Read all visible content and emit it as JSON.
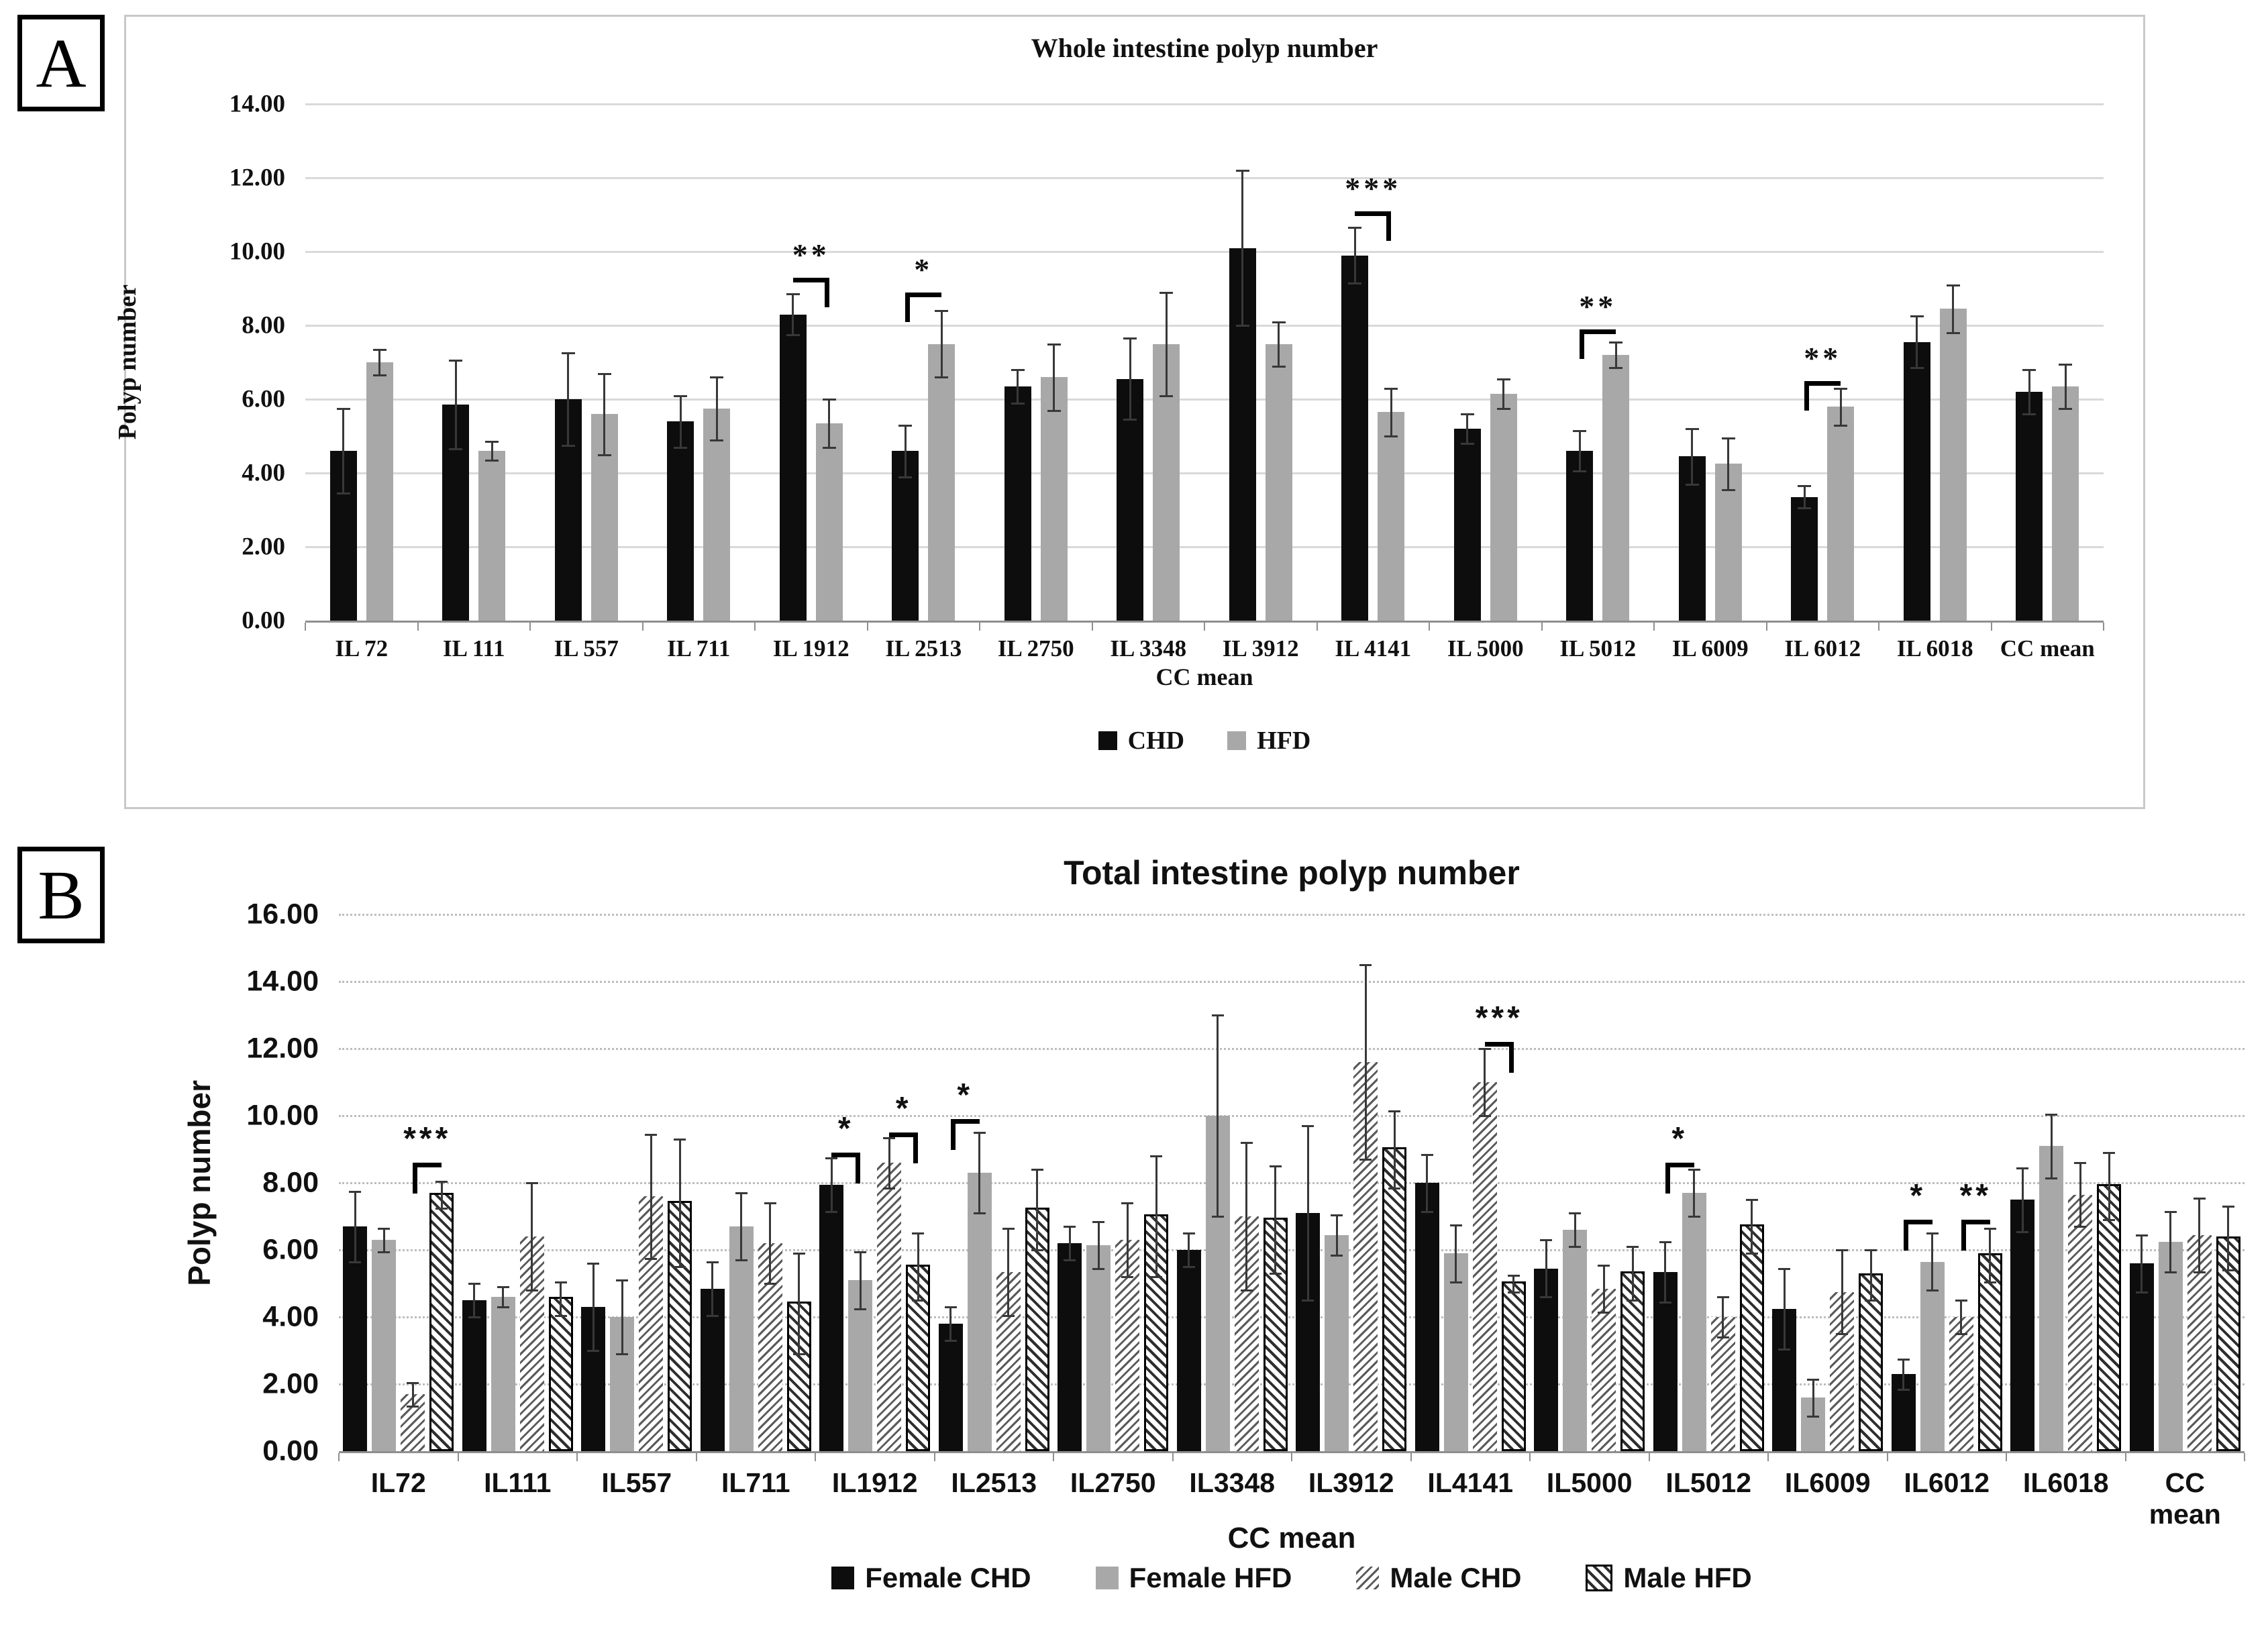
{
  "panels": {
    "a": "A",
    "b": "B"
  },
  "colors": {
    "bar_black": "#0d0d0d",
    "bar_gray": "#a8a8a8",
    "hatch_stroke": "#5a5a5a",
    "gridline": "#d9d9d9",
    "axis": "#8f8f8f",
    "panel_border": "#c8c8c8"
  },
  "chart_data": [
    {
      "id": "whole-intestine",
      "type": "bar",
      "title": "Whole intestine polyp number",
      "xlabel": "CC mean",
      "ylabel": "Polyp number",
      "ylim": [
        0,
        14
      ],
      "ytick_step": 2,
      "ytick_labels": [
        "0.00",
        "2.00",
        "4.00",
        "6.00",
        "8.00",
        "10.00",
        "12.00",
        "14.00"
      ],
      "grid": "solid",
      "legend_position": "bottom-center",
      "categories": [
        "IL 72",
        "IL 111",
        "IL 557",
        "IL 711",
        "IL 1912",
        "IL 2513",
        "IL 2750",
        "IL 3348",
        "IL 3912",
        "IL 4141",
        "IL 5000",
        "IL 5012",
        "IL 6009",
        "IL 6012",
        "IL 6018",
        "CC mean"
      ],
      "series": [
        {
          "name": "CHD",
          "style": "black",
          "color": "#0d0d0d",
          "values": [
            4.6,
            5.85,
            6.0,
            5.4,
            8.3,
            4.6,
            6.35,
            6.55,
            10.1,
            9.9,
            5.2,
            4.6,
            4.45,
            3.35,
            7.55,
            6.2
          ],
          "errors": [
            1.15,
            1.2,
            1.25,
            0.7,
            0.55,
            0.7,
            0.45,
            1.1,
            2.1,
            0.75,
            0.4,
            0.55,
            0.75,
            0.3,
            0.7,
            0.6
          ]
        },
        {
          "name": "HFD",
          "style": "gray",
          "color": "#a8a8a8",
          "values": [
            7.0,
            4.6,
            5.6,
            5.75,
            5.35,
            7.5,
            6.6,
            7.5,
            7.5,
            5.65,
            6.15,
            7.2,
            4.25,
            5.8,
            8.45,
            6.35
          ],
          "errors": [
            0.35,
            0.25,
            1.1,
            0.85,
            0.65,
            0.9,
            0.9,
            1.4,
            0.6,
            0.65,
            0.4,
            0.35,
            0.7,
            0.5,
            0.65,
            0.6
          ]
        }
      ],
      "significance": [
        {
          "category": "IL 1912",
          "pair": [
            0,
            1
          ],
          "stars": "**",
          "y": 9.3,
          "drop": "right"
        },
        {
          "category": "IL 2513",
          "pair": [
            0,
            1
          ],
          "stars": "*",
          "y": 8.9,
          "drop": "left"
        },
        {
          "category": "IL 4141",
          "pair": [
            0,
            1
          ],
          "stars": "***",
          "y": 11.1,
          "drop": "right"
        },
        {
          "category": "IL 5012",
          "pair": [
            0,
            1
          ],
          "stars": "**",
          "y": 7.9,
          "drop": "left"
        },
        {
          "category": "IL 6012",
          "pair": [
            0,
            1
          ],
          "stars": "**",
          "y": 6.5,
          "drop": "left"
        }
      ]
    },
    {
      "id": "total-intestine",
      "type": "bar",
      "title": "Total intestine polyp number",
      "xlabel": "CC mean",
      "ylabel": "Polyp number",
      "ylim": [
        0,
        16
      ],
      "ytick_step": 2,
      "ytick_labels": [
        "0.00",
        "2.00",
        "4.00",
        "6.00",
        "8.00",
        "10.00",
        "12.00",
        "14.00",
        "16.00"
      ],
      "grid": "dotted",
      "legend_position": "bottom-center",
      "categories": [
        "IL72",
        "IL111",
        "IL557",
        "IL711",
        "IL1912",
        "IL2513",
        "IL2750",
        "IL3348",
        "IL3912",
        "IL4141",
        "IL5000",
        "IL5012",
        "IL6009",
        "IL6012",
        "IL6018",
        "CC mean"
      ],
      "series": [
        {
          "name": "Female CHD",
          "style": "black",
          "color": "#0d0d0d",
          "values": [
            6.7,
            4.5,
            4.3,
            4.85,
            7.95,
            3.8,
            6.2,
            6.0,
            7.1,
            8.0,
            5.45,
            5.35,
            4.25,
            2.3,
            7.5,
            5.6
          ],
          "errors": [
            1.05,
            0.5,
            1.3,
            0.8,
            0.8,
            0.5,
            0.5,
            0.5,
            2.6,
            0.85,
            0.85,
            0.9,
            1.2,
            0.45,
            0.95,
            0.85
          ]
        },
        {
          "name": "Female HFD",
          "style": "gray",
          "color": "#a8a8a8",
          "values": [
            6.3,
            4.6,
            4.0,
            6.7,
            5.1,
            8.3,
            6.15,
            10.0,
            6.45,
            5.9,
            6.6,
            7.7,
            1.6,
            5.65,
            9.1,
            6.25
          ],
          "errors": [
            0.35,
            0.3,
            1.1,
            1.0,
            0.85,
            1.2,
            0.7,
            3.0,
            0.6,
            0.85,
            0.5,
            0.7,
            0.55,
            0.85,
            0.95,
            0.9
          ]
        },
        {
          "name": "Male CHD",
          "style": "hatch-light",
          "color": "#5a5a5a",
          "values": [
            1.7,
            6.4,
            7.6,
            6.2,
            8.6,
            5.35,
            6.3,
            7.0,
            11.6,
            11.0,
            4.85,
            4.0,
            4.75,
            4.0,
            7.65,
            6.45
          ],
          "errors": [
            0.35,
            1.6,
            1.85,
            1.2,
            0.75,
            1.3,
            1.1,
            2.2,
            2.9,
            1.0,
            0.7,
            0.6,
            1.25,
            0.5,
            0.95,
            1.1
          ]
        },
        {
          "name": "Male HFD",
          "style": "hatch-bordered",
          "color": "#2e2e2e",
          "values": [
            7.65,
            4.55,
            7.4,
            4.4,
            5.5,
            7.2,
            7.0,
            6.9,
            9.0,
            5.0,
            5.3,
            6.7,
            5.25,
            5.85,
            7.9,
            6.35
          ],
          "errors": [
            0.4,
            0.5,
            1.9,
            1.5,
            1.0,
            1.2,
            1.8,
            1.6,
            1.15,
            0.25,
            0.8,
            0.8,
            0.75,
            0.8,
            1.0,
            0.95
          ]
        }
      ],
      "significance": [
        {
          "category": "IL72",
          "pair": [
            2,
            3
          ],
          "stars": "***",
          "y": 8.6,
          "drop": "left"
        },
        {
          "category": "IL1912",
          "pair": [
            0,
            1
          ],
          "stars": "*",
          "y": 8.9,
          "drop": "right"
        },
        {
          "category": "IL1912",
          "pair": [
            2,
            3
          ],
          "stars": "*",
          "y": 9.5,
          "drop": "right"
        },
        {
          "category": "IL2513",
          "pair": [
            0,
            1
          ],
          "stars": "*",
          "y": 9.9,
          "drop": "left"
        },
        {
          "category": "IL4141",
          "pair": [
            2,
            3
          ],
          "stars": "***",
          "y": 12.2,
          "drop": "right"
        },
        {
          "category": "IL5012",
          "pair": [
            0,
            1
          ],
          "stars": "*",
          "y": 8.6,
          "drop": "left"
        },
        {
          "category": "IL6012",
          "pair": [
            0,
            1
          ],
          "stars": "*",
          "y": 6.9,
          "drop": "left"
        },
        {
          "category": "IL6012",
          "pair": [
            2,
            3
          ],
          "stars": "**",
          "y": 6.9,
          "drop": "left"
        }
      ]
    }
  ]
}
